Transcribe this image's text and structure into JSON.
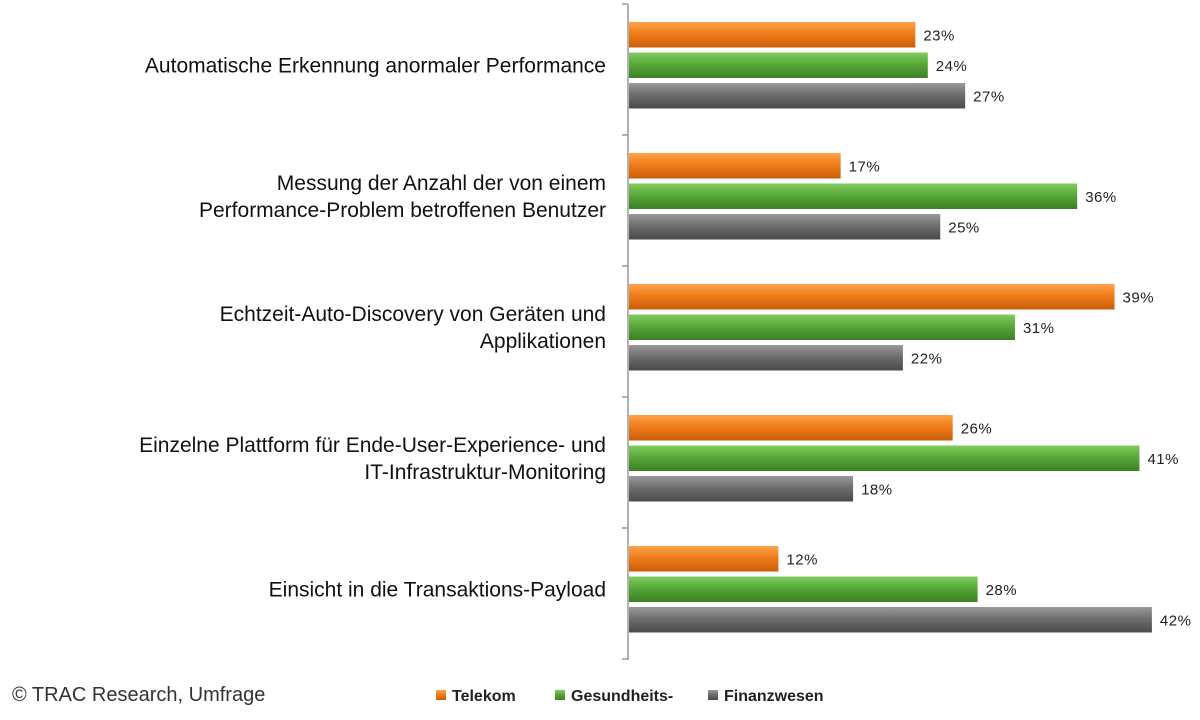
{
  "chart_data": {
    "type": "bar",
    "orientation": "horizontal",
    "categories": [
      [
        "Automatische Erkennung anormaler Performance"
      ],
      [
        "Messung der Anzahl der von einem",
        "Performance-Problem betroffenen Benutzer"
      ],
      [
        "Echtzeit-Auto-Discovery von Geräten und",
        "Applikationen"
      ],
      [
        "Einzelne Plattform für Ende-User-Experience- und",
        "IT-Infrastruktur-Monitoring"
      ],
      [
        "Einsicht in die Transaktions-Payload"
      ]
    ],
    "series": [
      {
        "name": "Telekom",
        "color": "#f07d1b",
        "values": [
          23,
          17,
          39,
          26,
          12
        ]
      },
      {
        "name": "Gesundheits-",
        "color": "#58a83a",
        "values": [
          24,
          36,
          31,
          41,
          28
        ]
      },
      {
        "name": "Finanzwesen",
        "color": "#6e6e6e",
        "values": [
          27,
          25,
          22,
          18,
          42
        ]
      }
    ],
    "value_suffix": "%",
    "xlim": [
      0,
      45
    ],
    "legend_position": "bottom",
    "grid": false
  },
  "source": "© TRAC Research, Umfrage"
}
